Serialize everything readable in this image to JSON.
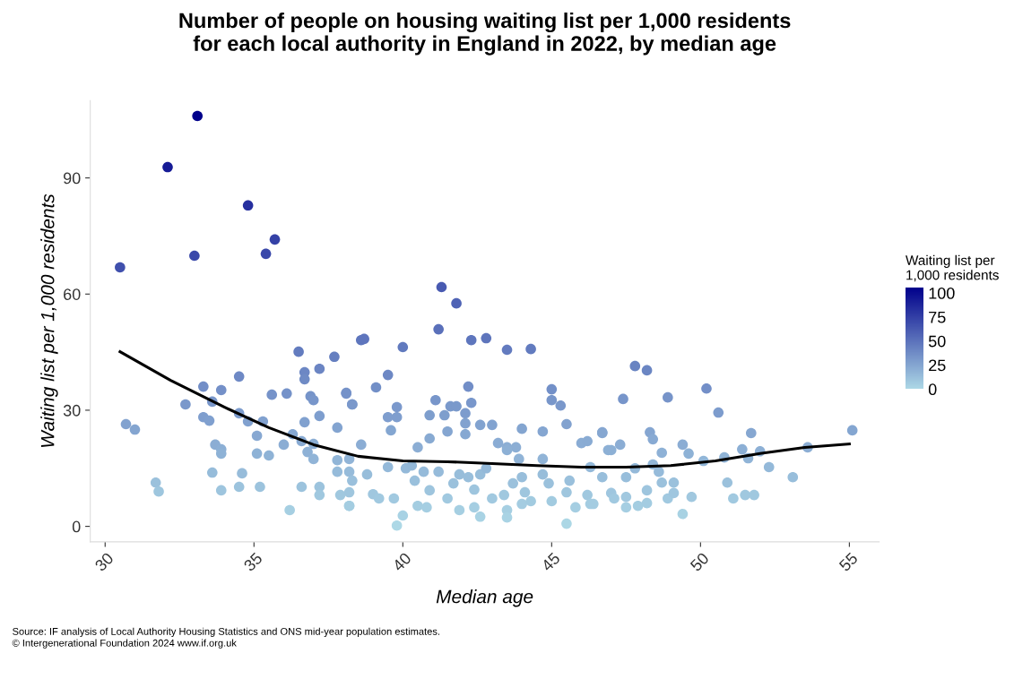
{
  "chart_data": {
    "type": "scatter",
    "title": "Number of people on housing waiting list per 1,000 residents\nfor each local authority in England in 2022, by median age",
    "xlabel": "Median age",
    "ylabel": "Waiting list per 1,000 residents",
    "clabel": "Waiting list per\n1,000 residents",
    "xlim": [
      29.5,
      56
    ],
    "ylim": [
      -4,
      110
    ],
    "xticks": [
      30,
      35,
      40,
      45,
      50,
      55
    ],
    "yticks": [
      0,
      30,
      60,
      90
    ],
    "clim": [
      0,
      106
    ],
    "cticks": [
      0,
      25,
      50,
      75,
      100
    ],
    "grid": false,
    "legend": false,
    "annotations": [
      "Source: IF analysis of Local Authority Housing Statistics and ONS mid-year population estimates.",
      "© Intergenerational Foundation 2024 www.if.org.uk"
    ],
    "series": [
      {
        "marker": "circle",
        "colors": [
          "#00008b",
          "#161b96",
          "#262f9f",
          "#3b49aa",
          "#4050ad",
          "#3441a6",
          "#3a48aa",
          "#485ab1",
          "#4f63b5",
          "#5a70ba",
          "#617abe",
          "#5e76bd",
          "#5e75bd",
          "#5e75bc",
          "#5e76bd",
          "#637bbf",
          "#627bbf",
          "#637cbf",
          "#657fc0",
          "#6b85c3",
          "#6c87c4",
          "#6f8bc5",
          "#6e89c5",
          "#6d88c4",
          "#6b86c3",
          "#6984c2",
          "#728fc7",
          "#7592c8",
          "#7a98cb",
          "#7b99cc",
          "#7f9ece",
          "#7f9ece",
          "#84a6d1",
          "#728ec7",
          "#7896ca",
          "#7a99cb",
          "#7a99cb",
          "#7997cb",
          "#7e9ecd",
          "#7e9ecd",
          "#7d9ccd",
          "#82a2cf",
          "#86a8d2",
          "#85a6d1",
          "#82a3d0",
          "#82a3d0",
          "#84a5d0",
          "#85a6d1",
          "#7390c8",
          "#7896ca",
          "#7a98cb",
          "#82a2cf",
          "#85a6d1",
          "#8badd4",
          "#88aad2",
          "#8caed4",
          "#8aacd4",
          "#8caed4",
          "#8caed4",
          "#8aacd4",
          "#89abd3",
          "#8db0d5",
          "#91b4d7",
          "#96bbda",
          "#9ac0dc",
          "#9fc6de",
          "#a4cde1",
          "#97bdda",
          "#a0c7df",
          "#a1c9e0",
          "#a1c9e0",
          "#a8d2e4",
          "#add8e6",
          "#94b9d9",
          "#94b9d9",
          "#9ac0dc",
          "#9ec5de",
          "#96bbda",
          "#96bbda",
          "#a4cde1",
          "#a5cee2",
          "#a1c9e0",
          "#9bc1dc",
          "#97bdda",
          "#98bedb",
          "#9ec5de",
          "#97bdda",
          "#94b9d9",
          "#a1c9e0",
          "#a5cee2",
          "#a6cfe2",
          "#a9d3e4",
          "#a0c8df",
          "#a6cfe2",
          "#a9d3e4",
          "#9bc1dc",
          "#98bedb",
          "#9fc6de",
          "#a4cce1",
          "#a2cbe0",
          "#91b4d7",
          "#8db0d5",
          "#91b4d7",
          "#97bdda",
          "#9bc1dc",
          "#a2cbe0",
          "#9fc6de",
          "#9ac0dc",
          "#a5cee2",
          "#acd7e5",
          "#a0c8df",
          "#a4cce1",
          "#94b9d9",
          "#98bedb",
          "#93b8d8",
          "#7795ca",
          "#7794c9",
          "#738fc8",
          "#7d9ccd",
          "#84a6d1",
          "#86a7d1",
          "#8badd4",
          "#8db0d5",
          "#85a6d1",
          "#88aad3",
          "#8eb1d6",
          "#8badd4",
          "#8eb2d6",
          "#91b6d8",
          "#90b4d7",
          "#86a7d1",
          "#8cafd5",
          "#90b4d7",
          "#8db0d5",
          "#94b9d9",
          "#8caed4",
          "#98bedb",
          "#9bc1dc",
          "#a1c9e0",
          "#a0c8df",
          "#a0c8df",
          "#94b9d9",
          "#93b7d8",
          "#96bbda",
          "#98bedb",
          "#9bc1dc",
          "#9bc1dc",
          "#9ec5de",
          "#9fc6df",
          "#a1c9e0",
          "#a1c8df",
          "#a1c9e0",
          "#9fc6df",
          "#a4cde1",
          "#a3cce1",
          "#a5cee2",
          "#a1c8df",
          "#a8d2e3",
          "#a4cce1",
          "#728ec7",
          "#7490c8",
          "#7a98cb",
          "#7896ca",
          "#7693c9",
          "#7592c9",
          "#7694c9",
          "#7896ca",
          "#7592c9",
          "#7a98cb",
          "#7f9ece",
          "#80a0cf",
          "#7d9ccd",
          "#81a1cf",
          "#81a1cf",
          "#81a1cf",
          "#7e9ece",
          "#83a4d0",
          "#82a2cf",
          "#84a5d0",
          "#87a8d2",
          "#86a8d2",
          "#89abd3",
          "#8aadd4",
          "#8badd4",
          "#8cafd5",
          "#8eb2d6",
          "#8eb2d6",
          "#8fb3d6",
          "#8badd4",
          "#8eb1d6",
          "#91b4d7",
          "#91b5d7",
          "#96bbda",
          "#96bcda",
          "#97bcda",
          "#9bc1dc",
          "#9ec6de",
          "#9ec5de",
          "#9cc3dd",
          "#9cc3dd",
          "#9cc3dd",
          "#9cc3dd",
          "#a0c8df",
          "#a0c8df",
          "#a6cfe2",
          "#a4cde1"
        ],
        "x": [
          33.1,
          32.1,
          34.8,
          33.0,
          30.5,
          35.7,
          35.4,
          41.3,
          41.8,
          41.2,
          40.0,
          38.6,
          38.7,
          42.8,
          42.3,
          43.5,
          44.3,
          36.5,
          37.7,
          37.2,
          36.7,
          36.7,
          34.5,
          39.5,
          48.2,
          47.8,
          39.1,
          38.1,
          38.3,
          39.8,
          39.5,
          39.8,
          39.6,
          42.2,
          41.1,
          41.6,
          41.8,
          42.3,
          40.9,
          41.4,
          42.1,
          42.1,
          42.1,
          41.5,
          42.6,
          43.0,
          44.0,
          44.7,
          45.0,
          45.0,
          45.3,
          45.5,
          46.7,
          38.6,
          40.9,
          40.5,
          43.2,
          43.5,
          43.8,
          46.0,
          46.2,
          46.9,
          38.2,
          38.2,
          38.3,
          38.2,
          38.2,
          38.8,
          39.0,
          39.2,
          39.7,
          40.0,
          39.8,
          39.5,
          40.1,
          40.4,
          40.9,
          41.2,
          40.7,
          40.5,
          40.8,
          41.5,
          41.7,
          41.9,
          42.2,
          42.4,
          42.6,
          42.8,
          43.0,
          42.4,
          41.9,
          42.6,
          43.4,
          43.5,
          43.5,
          43.7,
          44.0,
          44.1,
          44.0,
          44.3,
          43.9,
          43.5,
          44.7,
          44.7,
          44.9,
          45.0,
          45.5,
          45.6,
          45.8,
          45.5,
          46.2,
          46.3,
          46.3,
          46.7,
          40.3,
          47.4,
          48.9,
          50.2,
          50.6,
          55.1,
          46.7,
          47.3,
          47.0,
          48.3,
          48.4,
          48.7,
          49.4,
          49.6,
          50.1,
          50.8,
          51.7,
          51.4,
          51.6,
          52.0,
          52.3,
          53.6,
          53.1,
          50.9,
          51.1,
          51.5,
          51.8,
          47.8,
          48.4,
          48.6,
          47.5,
          48.7,
          49.1,
          48.2,
          47.0,
          47.1,
          47.5,
          48.9,
          49.1,
          47.9,
          48.2,
          47.5,
          49.7,
          49.4,
          46.4,
          33.3,
          33.9,
          32.7,
          33.6,
          35.6,
          36.1,
          36.9,
          37.0,
          38.1,
          38.3,
          33.3,
          33.5,
          34.5,
          34.8,
          35.3,
          36.7,
          37.2,
          37.8,
          30.7,
          31.0,
          35.1,
          36.3,
          36.6,
          37.0,
          33.7,
          33.9,
          33.9,
          35.1,
          35.5,
          36.0,
          36.8,
          37.0,
          37.8,
          37.8,
          33.6,
          34.6,
          31.7,
          31.8,
          33.9,
          34.5,
          35.2,
          36.6,
          37.2,
          37.2,
          37.9,
          36.2,
          38.2
        ],
        "values": [
          106.0,
          92.8,
          82.9,
          69.9,
          66.9,
          74.1,
          70.4,
          61.8,
          57.6,
          50.9,
          46.3,
          48.1,
          48.4,
          48.6,
          48.1,
          45.6,
          45.8,
          45.1,
          43.8,
          40.7,
          39.8,
          38.0,
          38.7,
          39.1,
          40.3,
          41.4,
          35.9,
          34.5,
          31.5,
          30.8,
          28.2,
          28.2,
          24.8,
          36.1,
          32.6,
          31.0,
          31.0,
          31.9,
          28.7,
          28.7,
          29.2,
          26.6,
          23.8,
          24.5,
          26.2,
          26.2,
          25.2,
          24.5,
          35.4,
          32.6,
          31.2,
          26.4,
          24.3,
          21.1,
          22.7,
          20.4,
          21.5,
          20.4,
          20.4,
          21.5,
          22.0,
          19.7,
          17.4,
          14.1,
          11.8,
          8.8,
          5.3,
          13.4,
          8.3,
          7.2,
          7.2,
          2.8,
          0.2,
          15.3,
          15.0,
          11.8,
          9.3,
          14.1,
          14.1,
          5.3,
          4.9,
          7.2,
          11.1,
          13.4,
          12.7,
          9.5,
          13.4,
          15.0,
          7.2,
          4.9,
          4.2,
          2.5,
          8.1,
          4.2,
          2.3,
          11.1,
          12.7,
          8.8,
          5.8,
          6.5,
          17.4,
          19.7,
          17.4,
          13.4,
          11.1,
          6.5,
          8.8,
          11.8,
          4.9,
          0.7,
          8.1,
          5.8,
          15.3,
          12.7,
          15.7,
          32.9,
          33.3,
          35.6,
          29.4,
          24.8,
          24.1,
          21.1,
          19.7,
          24.3,
          22.5,
          19.0,
          21.1,
          18.8,
          16.9,
          17.8,
          24.1,
          19.9,
          17.6,
          19.4,
          15.3,
          20.4,
          12.7,
          11.3,
          7.2,
          8.1,
          8.1,
          15.0,
          16.0,
          14.1,
          12.7,
          11.3,
          11.3,
          9.3,
          8.6,
          7.2,
          7.6,
          7.2,
          8.6,
          5.3,
          6.0,
          4.9,
          7.6,
          3.2,
          5.8,
          36.1,
          35.2,
          31.5,
          32.2,
          34.0,
          34.3,
          33.6,
          32.6,
          34.3,
          31.5,
          28.2,
          27.3,
          29.2,
          27.1,
          27.1,
          26.9,
          28.5,
          25.5,
          26.4,
          25.0,
          23.4,
          23.8,
          22.0,
          21.3,
          21.1,
          19.9,
          18.8,
          18.8,
          18.3,
          21.1,
          19.2,
          17.4,
          17.1,
          14.1,
          13.9,
          13.7,
          11.3,
          9.0,
          9.3,
          10.2,
          10.2,
          10.2,
          10.2,
          8.1,
          8.1,
          4.2,
          5.3
        ]
      },
      {
        "type": "line",
        "color": "#000000",
        "marker": "none",
        "x": [
          30.5,
          32.2,
          34.0,
          35.5,
          37.0,
          38.5,
          40.0,
          41.5,
          43.0,
          44.5,
          46.0,
          47.5,
          49.0,
          50.5,
          52.0,
          53.5,
          55.0
        ],
        "values": [
          45.1,
          37.7,
          30.8,
          25.5,
          21.1,
          18.1,
          16.9,
          16.7,
          16.2,
          15.7,
          15.3,
          15.3,
          15.7,
          16.9,
          18.8,
          20.4,
          21.3
        ]
      }
    ]
  }
}
